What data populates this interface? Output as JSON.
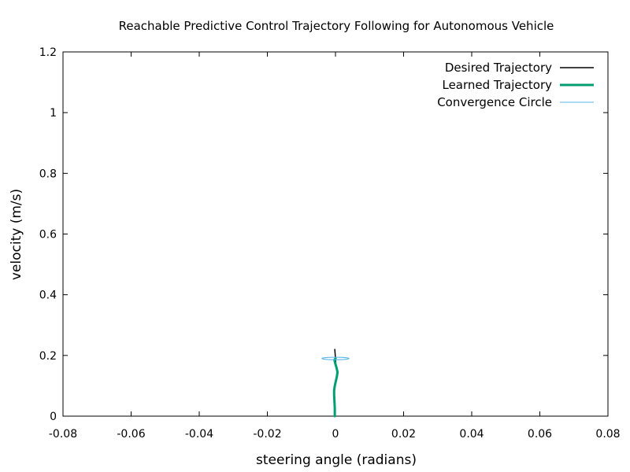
{
  "chart_data": {
    "type": "line",
    "title": "Reachable Predictive Control Trajectory Following for Autonomous Vehicle",
    "xlabel": "steering angle (radians)",
    "ylabel": "velocity (m/s)",
    "xlim": [
      -0.08,
      0.08
    ],
    "ylim": [
      0,
      1.2
    ],
    "xticks": [
      -0.08,
      -0.06,
      -0.04,
      -0.02,
      0,
      0.02,
      0.04,
      0.06,
      0.08
    ],
    "xtick_labels": [
      "-0.08",
      "-0.06",
      "-0.04",
      "-0.02",
      "0",
      "0.02",
      "0.04",
      "0.06",
      "0.08"
    ],
    "yticks": [
      0,
      0.2,
      0.4,
      0.6,
      0.8,
      1,
      1.2
    ],
    "ytick_labels": [
      "0",
      "0.2",
      "0.4",
      "0.6",
      "0.8",
      "1",
      "1.2"
    ],
    "grid": false,
    "legend_position": "top-right",
    "series": [
      {
        "name": "Desired Trajectory",
        "color": "#000000",
        "kind": "line",
        "x": [
          -0.0002,
          -0.0001,
          0.0,
          0.0001
        ],
        "y": [
          0.22,
          0.205,
          0.19,
          0.175
        ]
      },
      {
        "name": "Learned Trajectory",
        "color": "#009e73",
        "kind": "line",
        "x": [
          0.0,
          -0.0003,
          -0.0001,
          0.0003,
          0.0006,
          0.0004,
          0.0001,
          -0.0002,
          -0.0004,
          -0.0004,
          -0.0003,
          -0.0002,
          -0.0002
        ],
        "y": [
          0.19,
          0.185,
          0.175,
          0.16,
          0.145,
          0.13,
          0.115,
          0.1,
          0.085,
          0.07,
          0.05,
          0.025,
          0.0
        ]
      },
      {
        "name": "Convergence Circle",
        "color": "#56b4e9",
        "kind": "ellipse",
        "center": [
          0.0,
          0.19
        ],
        "radius_x": 0.004,
        "radius_y": 0.004
      }
    ]
  }
}
